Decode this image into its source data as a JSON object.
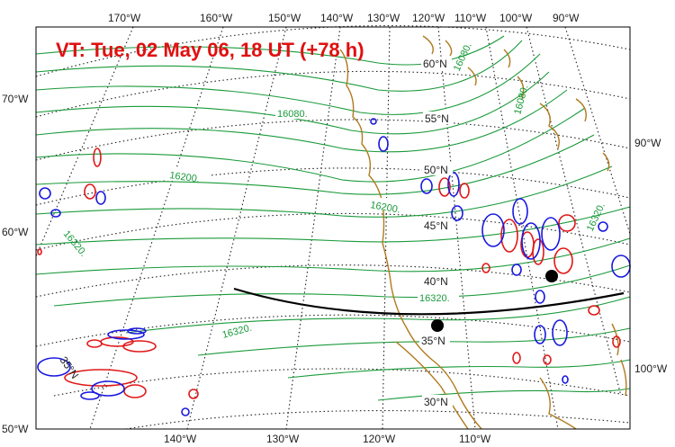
{
  "title": "VT:  Tue, 02 May 06, 18 UT (+78 h)",
  "top_lon_labels": [
    "170°W",
    "160°W",
    "150°W",
    "140°W",
    "130°W",
    "120°W",
    "110°W",
    "100°W",
    "90°W"
  ],
  "bottom_lon_labels": [
    "140°W",
    "130°W",
    "120°W",
    "110°W"
  ],
  "left_labels": [
    "70°W",
    "60°W",
    "50°W"
  ],
  "right_labels": [
    "90°W",
    "100°W"
  ],
  "lat_labels": [
    "60°N",
    "55°N",
    "50°N",
    "45°N",
    "40°N",
    "35°N",
    "30°N"
  ],
  "inner_left_label": "35°N",
  "height_labels": [
    "16080.",
    "16200.",
    "16200.",
    "16320.",
    "16320.",
    "16320.",
    "16320.",
    "16080.",
    "16080."
  ],
  "colors": {
    "title": "#e01010",
    "height_contours": "#1a9a3a",
    "positive_anomaly": "#e01818",
    "negative_anomaly": "#1818e0",
    "coastline": "#b07a1e",
    "track": "#000000"
  },
  "markers": [
    "track-point-pacific",
    "track-point-continent"
  ]
}
